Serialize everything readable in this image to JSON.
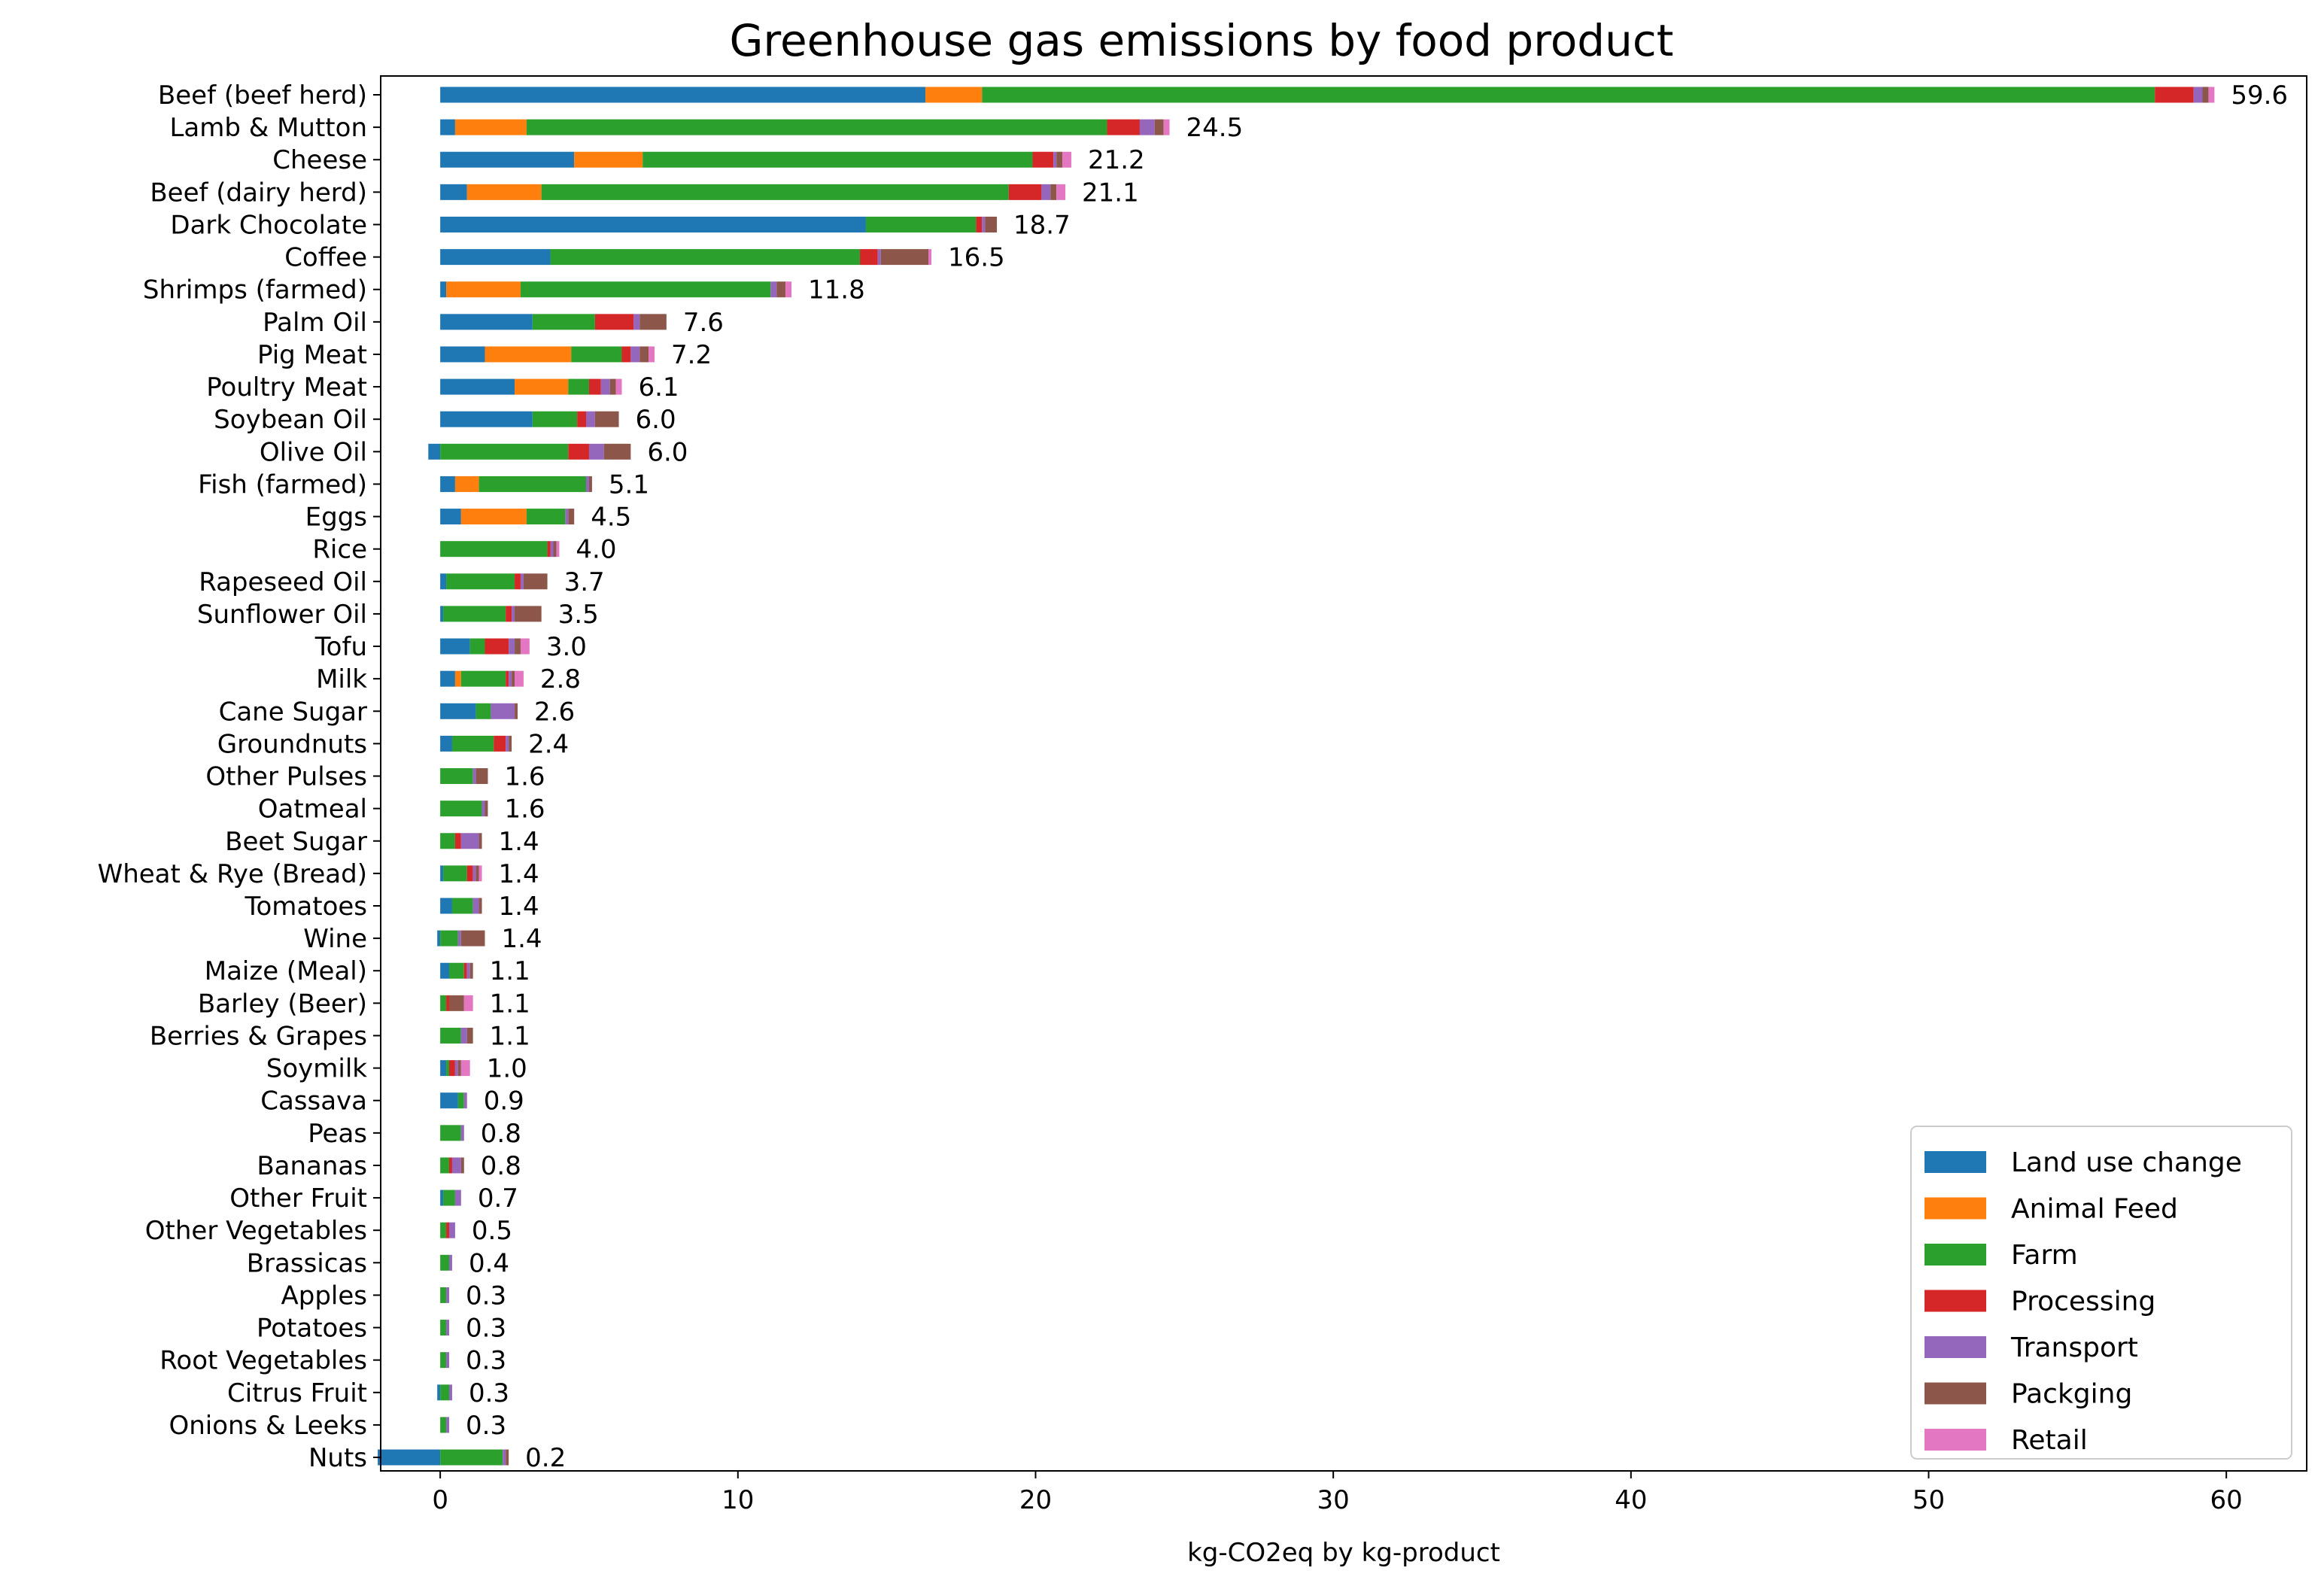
{
  "chart_data": {
    "type": "bar",
    "orientation": "horizontal",
    "stacked": true,
    "title": "Greenhouse gas emissions by food product",
    "xlabel": "kg-CO2eq by kg-product",
    "ylabel": "",
    "xlim": [
      -2,
      62.7
    ],
    "xticks": [
      0,
      10,
      20,
      30,
      40,
      50,
      60
    ],
    "grid": false,
    "legend_position": "bottom-right",
    "categories": [
      "Beef (beef herd)",
      "Lamb & Mutton",
      "Cheese",
      "Beef (dairy herd)",
      "Dark Chocolate",
      "Coffee",
      "Shrimps (farmed)",
      "Palm Oil",
      "Pig Meat",
      "Poultry Meat",
      "Soybean Oil",
      "Olive Oil",
      "Fish (farmed)",
      "Eggs",
      "Rice",
      "Rapeseed Oil",
      "Sunflower Oil",
      "Tofu",
      "Milk",
      "Cane Sugar",
      "Groundnuts",
      "Other Pulses",
      "Oatmeal",
      "Beet Sugar",
      "Wheat & Rye (Bread)",
      "Tomatoes",
      "Wine",
      "Maize (Meal)",
      "Barley (Beer)",
      "Berries & Grapes",
      "Soymilk",
      "Cassava",
      "Peas",
      "Bananas",
      "Other Fruit",
      "Other Vegetables",
      "Brassicas",
      "Apples",
      "Potatoes",
      "Root Vegetables",
      "Citrus Fruit",
      "Onions & Leeks",
      "Nuts"
    ],
    "totals": [
      "59.6",
      "24.5",
      "21.2",
      "21.1",
      "18.7",
      "16.5",
      "11.8",
      "7.6",
      "7.2",
      "6.1",
      "6.0",
      "6.0",
      "5.1",
      "4.5",
      "4.0",
      "3.7",
      "3.5",
      "3.0",
      "2.8",
      "2.6",
      "2.4",
      "1.6",
      "1.6",
      "1.4",
      "1.4",
      "1.4",
      "1.4",
      "1.1",
      "1.1",
      "1.1",
      "1.0",
      "0.9",
      "0.8",
      "0.8",
      "0.7",
      "0.5",
      "0.4",
      "0.3",
      "0.3",
      "0.3",
      "0.3",
      "0.3",
      "0.2"
    ],
    "series": [
      {
        "name": "Land use change",
        "color": "#1f77b4",
        "values": [
          16.3,
          0.5,
          4.5,
          0.9,
          14.3,
          3.7,
          0.2,
          3.1,
          1.5,
          2.5,
          3.1,
          -0.4,
          0.5,
          0.7,
          0.0,
          0.2,
          0.1,
          1.0,
          0.5,
          1.2,
          0.4,
          0.0,
          0.0,
          0.0,
          0.1,
          0.4,
          -0.1,
          0.3,
          0.0,
          0.0,
          0.2,
          0.6,
          0.0,
          0.0,
          0.1,
          0.0,
          0.0,
          0.0,
          0.0,
          0.0,
          -0.1,
          0.0,
          -2.1
        ]
      },
      {
        "name": "Animal Feed",
        "color": "#ff7f0e",
        "values": [
          1.9,
          2.4,
          2.3,
          2.5,
          0.0,
          0.0,
          2.5,
          0.0,
          2.9,
          1.8,
          0.0,
          0.0,
          0.8,
          2.2,
          0.0,
          0.0,
          0.0,
          0.0,
          0.2,
          0.0,
          0.0,
          0.0,
          0.0,
          0.0,
          0.0,
          0.0,
          0.0,
          0.0,
          0.0,
          0.0,
          0.0,
          0.0,
          0.0,
          0.0,
          0.0,
          0.0,
          0.0,
          0.0,
          0.0,
          0.0,
          0.0,
          0.0,
          0.0
        ]
      },
      {
        "name": "Farm",
        "color": "#2ca02c",
        "values": [
          39.4,
          19.5,
          13.1,
          15.7,
          3.7,
          10.4,
          8.4,
          2.1,
          1.7,
          0.7,
          1.5,
          4.3,
          3.6,
          1.3,
          3.6,
          2.3,
          2.1,
          0.5,
          1.5,
          0.5,
          1.4,
          1.1,
          1.4,
          0.5,
          0.8,
          0.7,
          0.6,
          0.5,
          0.2,
          0.7,
          0.1,
          0.2,
          0.7,
          0.3,
          0.4,
          0.2,
          0.3,
          0.2,
          0.2,
          0.2,
          0.3,
          0.2,
          2.1
        ]
      },
      {
        "name": "Processing",
        "color": "#d62728",
        "values": [
          1.3,
          1.1,
          0.7,
          1.1,
          0.2,
          0.6,
          0.0,
          1.3,
          0.3,
          0.4,
          0.3,
          0.7,
          0.0,
          0.0,
          0.1,
          0.2,
          0.2,
          0.8,
          0.1,
          0.0,
          0.4,
          0.0,
          0.0,
          0.2,
          0.2,
          0.0,
          0.0,
          0.1,
          0.1,
          0.0,
          0.2,
          0.0,
          0.0,
          0.1,
          0.0,
          0.1,
          0.0,
          0.0,
          0.0,
          0.0,
          0.0,
          0.0,
          0.0
        ]
      },
      {
        "name": "Transport",
        "color": "#9467bd",
        "values": [
          0.3,
          0.5,
          0.1,
          0.3,
          0.1,
          0.1,
          0.2,
          0.2,
          0.3,
          0.3,
          0.3,
          0.5,
          0.1,
          0.1,
          0.1,
          0.1,
          0.1,
          0.2,
          0.1,
          0.8,
          0.1,
          0.1,
          0.1,
          0.6,
          0.1,
          0.2,
          0.1,
          0.1,
          0.0,
          0.2,
          0.1,
          0.1,
          0.1,
          0.3,
          0.2,
          0.2,
          0.1,
          0.1,
          0.1,
          0.1,
          0.1,
          0.1,
          0.1
        ]
      },
      {
        "name": "Packging",
        "color": "#8c564b",
        "values": [
          0.2,
          0.3,
          0.2,
          0.2,
          0.4,
          1.6,
          0.3,
          0.9,
          0.3,
          0.2,
          0.8,
          0.9,
          0.1,
          0.2,
          0.1,
          0.8,
          0.9,
          0.2,
          0.1,
          0.1,
          0.1,
          0.4,
          0.1,
          0.1,
          0.1,
          0.1,
          0.8,
          0.1,
          0.5,
          0.2,
          0.1,
          0.0,
          0.0,
          0.1,
          0.0,
          0.0,
          0.0,
          0.0,
          0.0,
          0.0,
          0.0,
          0.0,
          0.1
        ]
      },
      {
        "name": "Retail",
        "color": "#e377c2",
        "values": [
          0.2,
          0.2,
          0.3,
          0.3,
          0.0,
          0.1,
          0.2,
          0.0,
          0.2,
          0.2,
          0.0,
          0.0,
          0.0,
          0.0,
          0.1,
          0.0,
          0.0,
          0.3,
          0.3,
          0.0,
          0.0,
          0.0,
          0.0,
          0.0,
          0.1,
          0.0,
          0.0,
          0.0,
          0.3,
          0.0,
          0.3,
          0.0,
          0.0,
          0.0,
          0.0,
          0.0,
          0.0,
          0.0,
          0.0,
          0.0,
          0.0,
          0.0,
          0.0
        ]
      }
    ]
  }
}
